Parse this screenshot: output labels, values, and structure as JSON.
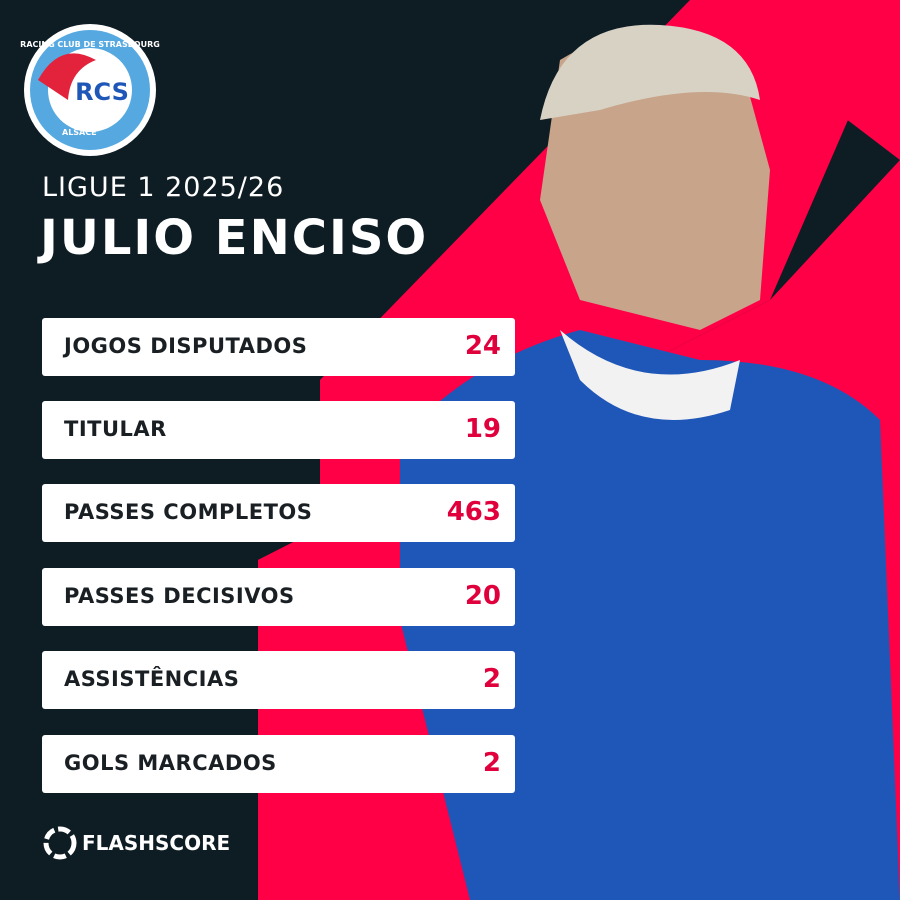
{
  "logo": {
    "top": "RACING CLUB DE STRASBOURG",
    "bottom": "ALSACE",
    "monogram": "RCS"
  },
  "header": {
    "competition": "LIGUE 1 2025/26",
    "player": "JULIO ENCISO"
  },
  "stats": [
    [
      "JOGOS DISPUTADOS",
      "24"
    ],
    [
      "TITULAR",
      "19"
    ],
    [
      "PASSES COMPLETOS",
      "463"
    ],
    [
      "PASSES DECISIVOS",
      "20"
    ],
    [
      "ASSISTÊNCIAS",
      "2"
    ],
    [
      "GOLS MARCADOS",
      "2"
    ]
  ],
  "brand": "FLASHSCORE"
}
